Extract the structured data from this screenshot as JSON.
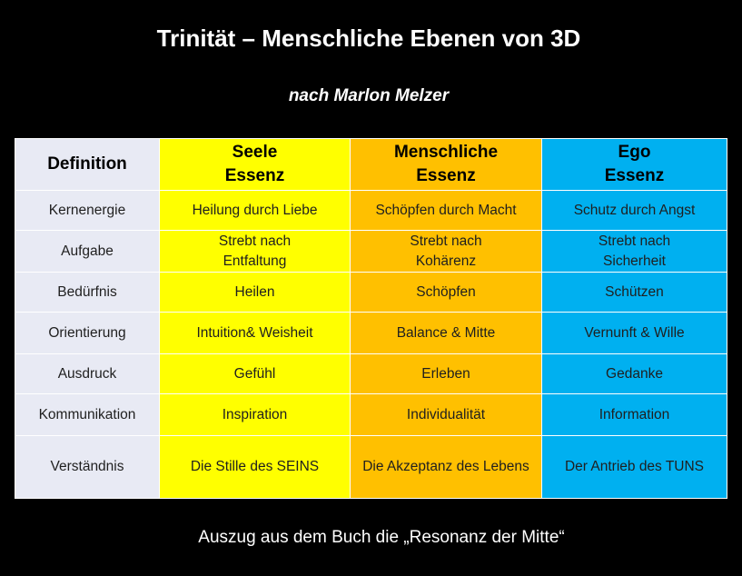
{
  "title": "Trinität – Menschliche Ebenen von 3D",
  "subtitle": "nach Marlon Melzer",
  "footer": "Auszug aus dem Buch die „Resonanz der Mitte“",
  "colors": {
    "definition_column": "#e8eaf4",
    "seele_column": "#ffff00",
    "menschliche_column": "#ffc000",
    "ego_column": "#00b0f0"
  },
  "table": {
    "header": {
      "definition": "Definition",
      "seele": [
        "Seele",
        "Essenz"
      ],
      "menschliche": [
        "Menschliche",
        "Essenz"
      ],
      "ego": [
        "Ego",
        "Essenz"
      ]
    },
    "rows": [
      {
        "label": "Kernenergie",
        "seele": [
          "Heilung durch Liebe"
        ],
        "menschliche": [
          "Schöpfen durch Macht"
        ],
        "ego": [
          "Schutz durch Angst"
        ]
      },
      {
        "label": "Aufgabe",
        "seele": [
          "Strebt nach",
          "Entfaltung"
        ],
        "menschliche": [
          "Strebt nach",
          "Kohärenz"
        ],
        "ego": [
          "Strebt nach",
          "Sicherheit"
        ]
      },
      {
        "label": "Bedürfnis",
        "seele": [
          "Heilen"
        ],
        "menschliche": [
          "Schöpfen"
        ],
        "ego": [
          "Schützen"
        ]
      },
      {
        "label": "Orientierung",
        "seele": [
          "Intuition& Weisheit"
        ],
        "menschliche": [
          "Balance & Mitte"
        ],
        "ego": [
          "Vernunft & Wille"
        ]
      },
      {
        "label": "Ausdruck",
        "seele": [
          "Gefühl"
        ],
        "menschliche": [
          "Erleben"
        ],
        "ego": [
          "Gedanke"
        ]
      },
      {
        "label": "Kommunikation",
        "seele": [
          "Inspiration"
        ],
        "menschliche": [
          "Individualität"
        ],
        "ego": [
          "Information"
        ]
      },
      {
        "label": "Verständnis",
        "seele": [
          "Die Stille  des SEINS"
        ],
        "menschliche": [
          "Die Akzeptanz des Lebens"
        ],
        "ego": [
          "Der Antrieb des TUNS"
        ]
      }
    ]
  }
}
